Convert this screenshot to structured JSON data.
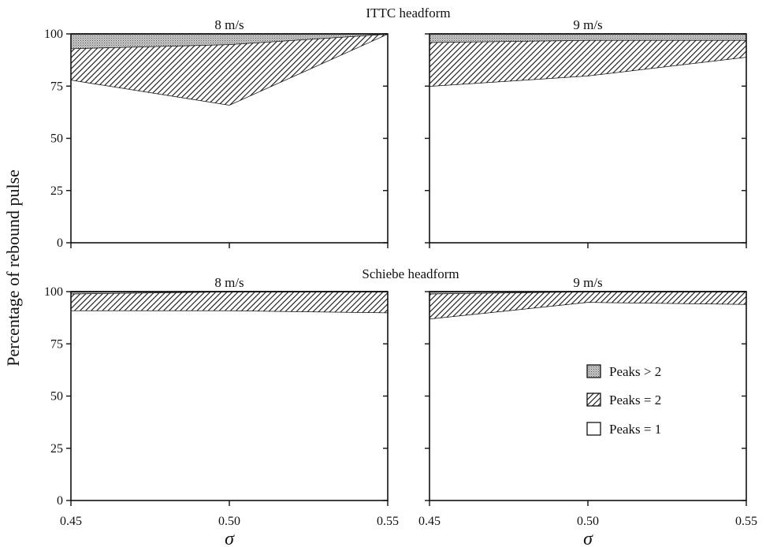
{
  "figure": {
    "ylabel": "Percentage of rebound pulse",
    "xlabel": "σ",
    "row_titles": [
      "ITTC headform",
      "Schiebe headform"
    ]
  },
  "legend": {
    "position": "inside lower-right panel",
    "items": [
      {
        "label": "Peaks > 2",
        "pattern": "stipple"
      },
      {
        "label": "Peaks = 2",
        "pattern": "hatch"
      },
      {
        "label": "Peaks = 1",
        "pattern": "white"
      }
    ]
  },
  "chart_data": [
    {
      "type": "area",
      "stacked": true,
      "row_title": "ITTC headform",
      "title": "8 m/s",
      "x": [
        0.45,
        0.5,
        0.55
      ],
      "xlim": [
        0.45,
        0.55
      ],
      "ylim": [
        0,
        100
      ],
      "xticks": [
        "0.45",
        "0.50",
        "0.55"
      ],
      "yticks": [
        "0",
        "25",
        "50",
        "75",
        "100"
      ],
      "series": [
        {
          "name": "Peaks = 1",
          "values": [
            78,
            66,
            100
          ]
        },
        {
          "name": "Peaks = 2",
          "values": [
            15,
            29,
            0
          ]
        },
        {
          "name": "Peaks > 2",
          "values": [
            7,
            5,
            0
          ]
        }
      ]
    },
    {
      "type": "area",
      "stacked": true,
      "row_title": "ITTC headform",
      "title": "9 m/s",
      "x": [
        0.45,
        0.5,
        0.55
      ],
      "xlim": [
        0.45,
        0.55
      ],
      "ylim": [
        0,
        100
      ],
      "xticks": [
        "0.45",
        "0.50",
        "0.55"
      ],
      "yticks": [
        "0",
        "25",
        "50",
        "75",
        "100"
      ],
      "series": [
        {
          "name": "Peaks = 1",
          "values": [
            75,
            80,
            89
          ]
        },
        {
          "name": "Peaks = 2",
          "values": [
            21,
            17,
            8
          ]
        },
        {
          "name": "Peaks > 2",
          "values": [
            4,
            3,
            3
          ]
        }
      ]
    },
    {
      "type": "area",
      "stacked": true,
      "row_title": "Schiebe headform",
      "title": "8 m/s",
      "x": [
        0.45,
        0.5,
        0.55
      ],
      "xlim": [
        0.45,
        0.55
      ],
      "ylim": [
        0,
        100
      ],
      "xticks": [
        "0.45",
        "0.50",
        "0.55"
      ],
      "yticks": [
        "0",
        "25",
        "50",
        "75",
        "100"
      ],
      "series": [
        {
          "name": "Peaks = 1",
          "values": [
            91,
            91,
            90
          ]
        },
        {
          "name": "Peaks = 2",
          "values": [
            8,
            9,
            10
          ]
        },
        {
          "name": "Peaks > 2",
          "values": [
            1,
            0,
            0
          ]
        }
      ]
    },
    {
      "type": "area",
      "stacked": true,
      "row_title": "Schiebe headform",
      "title": "9 m/s",
      "x": [
        0.45,
        0.5,
        0.55
      ],
      "xlim": [
        0.45,
        0.55
      ],
      "ylim": [
        0,
        100
      ],
      "xticks": [
        "0.45",
        "0.50",
        "0.55"
      ],
      "yticks": [
        "0",
        "25",
        "50",
        "75",
        "100"
      ],
      "series": [
        {
          "name": "Peaks = 1",
          "values": [
            87,
            95,
            94
          ]
        },
        {
          "name": "Peaks = 2",
          "values": [
            12,
            5,
            6
          ]
        },
        {
          "name": "Peaks > 2",
          "values": [
            1,
            0,
            0
          ]
        }
      ]
    }
  ]
}
